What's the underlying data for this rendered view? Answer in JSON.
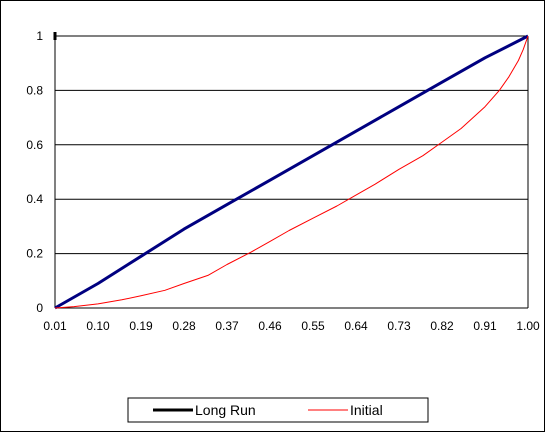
{
  "chart_data": {
    "type": "line",
    "title": "",
    "xlabel": "",
    "ylabel": "",
    "x_ticks": [
      "0.01",
      "0.10",
      "0.19",
      "0.28",
      "0.37",
      "0.46",
      "0.55",
      "0.64",
      "0.73",
      "0.82",
      "0.91",
      "1.00"
    ],
    "y_ticks": [
      "0",
      "0.2",
      "0.4",
      "0.6",
      "0.8",
      "1"
    ],
    "xlim": [
      0.01,
      1.0
    ],
    "ylim": [
      0,
      1
    ],
    "grid": "horizontal",
    "legend_position": "bottom",
    "series": [
      {
        "name": "Long Run",
        "color": "#000080",
        "x": [
          0.01,
          0.1,
          0.19,
          0.28,
          0.37,
          0.46,
          0.55,
          0.64,
          0.73,
          0.82,
          0.91,
          1.0
        ],
        "y": [
          0.0,
          0.09,
          0.19,
          0.29,
          0.38,
          0.47,
          0.56,
          0.65,
          0.74,
          0.83,
          0.92,
          1.0
        ]
      },
      {
        "name": "Initial",
        "color": "#ff0000",
        "x": [
          0.01,
          0.05,
          0.1,
          0.15,
          0.19,
          0.24,
          0.28,
          0.33,
          0.37,
          0.42,
          0.46,
          0.5,
          0.55,
          0.6,
          0.64,
          0.68,
          0.73,
          0.78,
          0.82,
          0.86,
          0.91,
          0.94,
          0.96,
          0.98,
          0.99,
          1.0
        ],
        "y": [
          0.0,
          0.005,
          0.015,
          0.03,
          0.045,
          0.065,
          0.09,
          0.12,
          0.16,
          0.205,
          0.245,
          0.285,
          0.33,
          0.375,
          0.415,
          0.455,
          0.51,
          0.56,
          0.61,
          0.66,
          0.74,
          0.8,
          0.85,
          0.91,
          0.95,
          1.0
        ]
      }
    ]
  }
}
